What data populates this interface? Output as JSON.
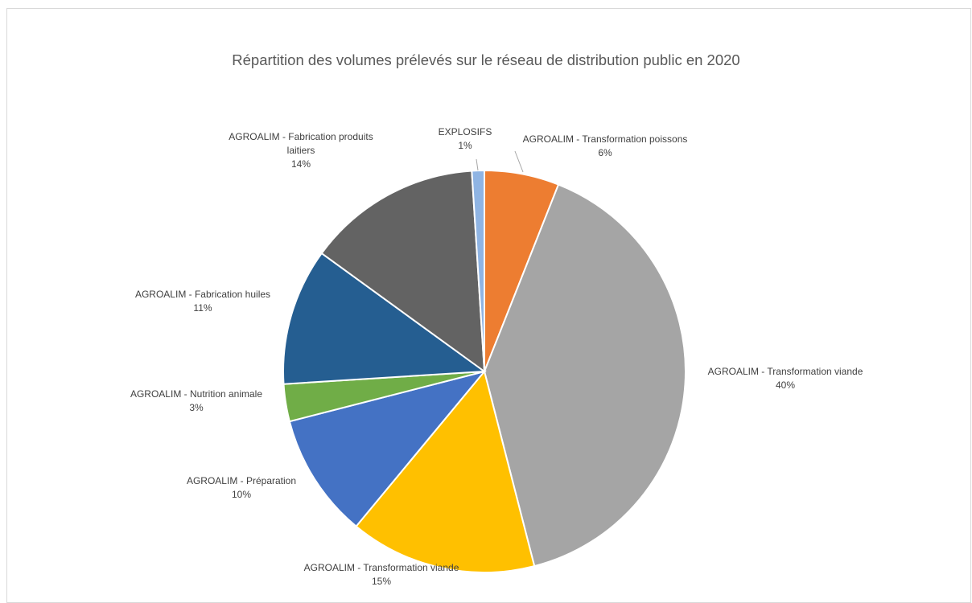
{
  "chart_data": {
    "type": "pie",
    "title": "Répartition des volumes prélevés sur le réseau de distribution public en 2020",
    "slices": [
      {
        "label": "AGROALIM - Transformation poissons",
        "value": 6,
        "value_label": "6%",
        "color": "#ED7D31"
      },
      {
        "label": "AGROALIM - Transformation viande",
        "value": 40,
        "value_label": "40%",
        "color": "#A5A5A5"
      },
      {
        "label": "AGROALIM - Transformation viande",
        "value": 15,
        "value_label": "15%",
        "color": "#FFC000"
      },
      {
        "label": "AGROALIM - Préparation",
        "value": 10,
        "value_label": "10%",
        "color": "#4472C4"
      },
      {
        "label": "AGROALIM - Nutrition animale",
        "value": 3,
        "value_label": "3%",
        "color": "#70AD47"
      },
      {
        "label": "AGROALIM - Fabrication huiles",
        "value": 11,
        "value_label": "11%",
        "color": "#255E91"
      },
      {
        "label": "AGROALIM - Fabrication produits laitiers",
        "value": 14,
        "value_label": "14%",
        "color": "#636363"
      },
      {
        "label": "EXPLOSIFS",
        "value": 1,
        "value_label": "1%",
        "color": "#8FB4E3"
      }
    ],
    "legend": "none"
  }
}
